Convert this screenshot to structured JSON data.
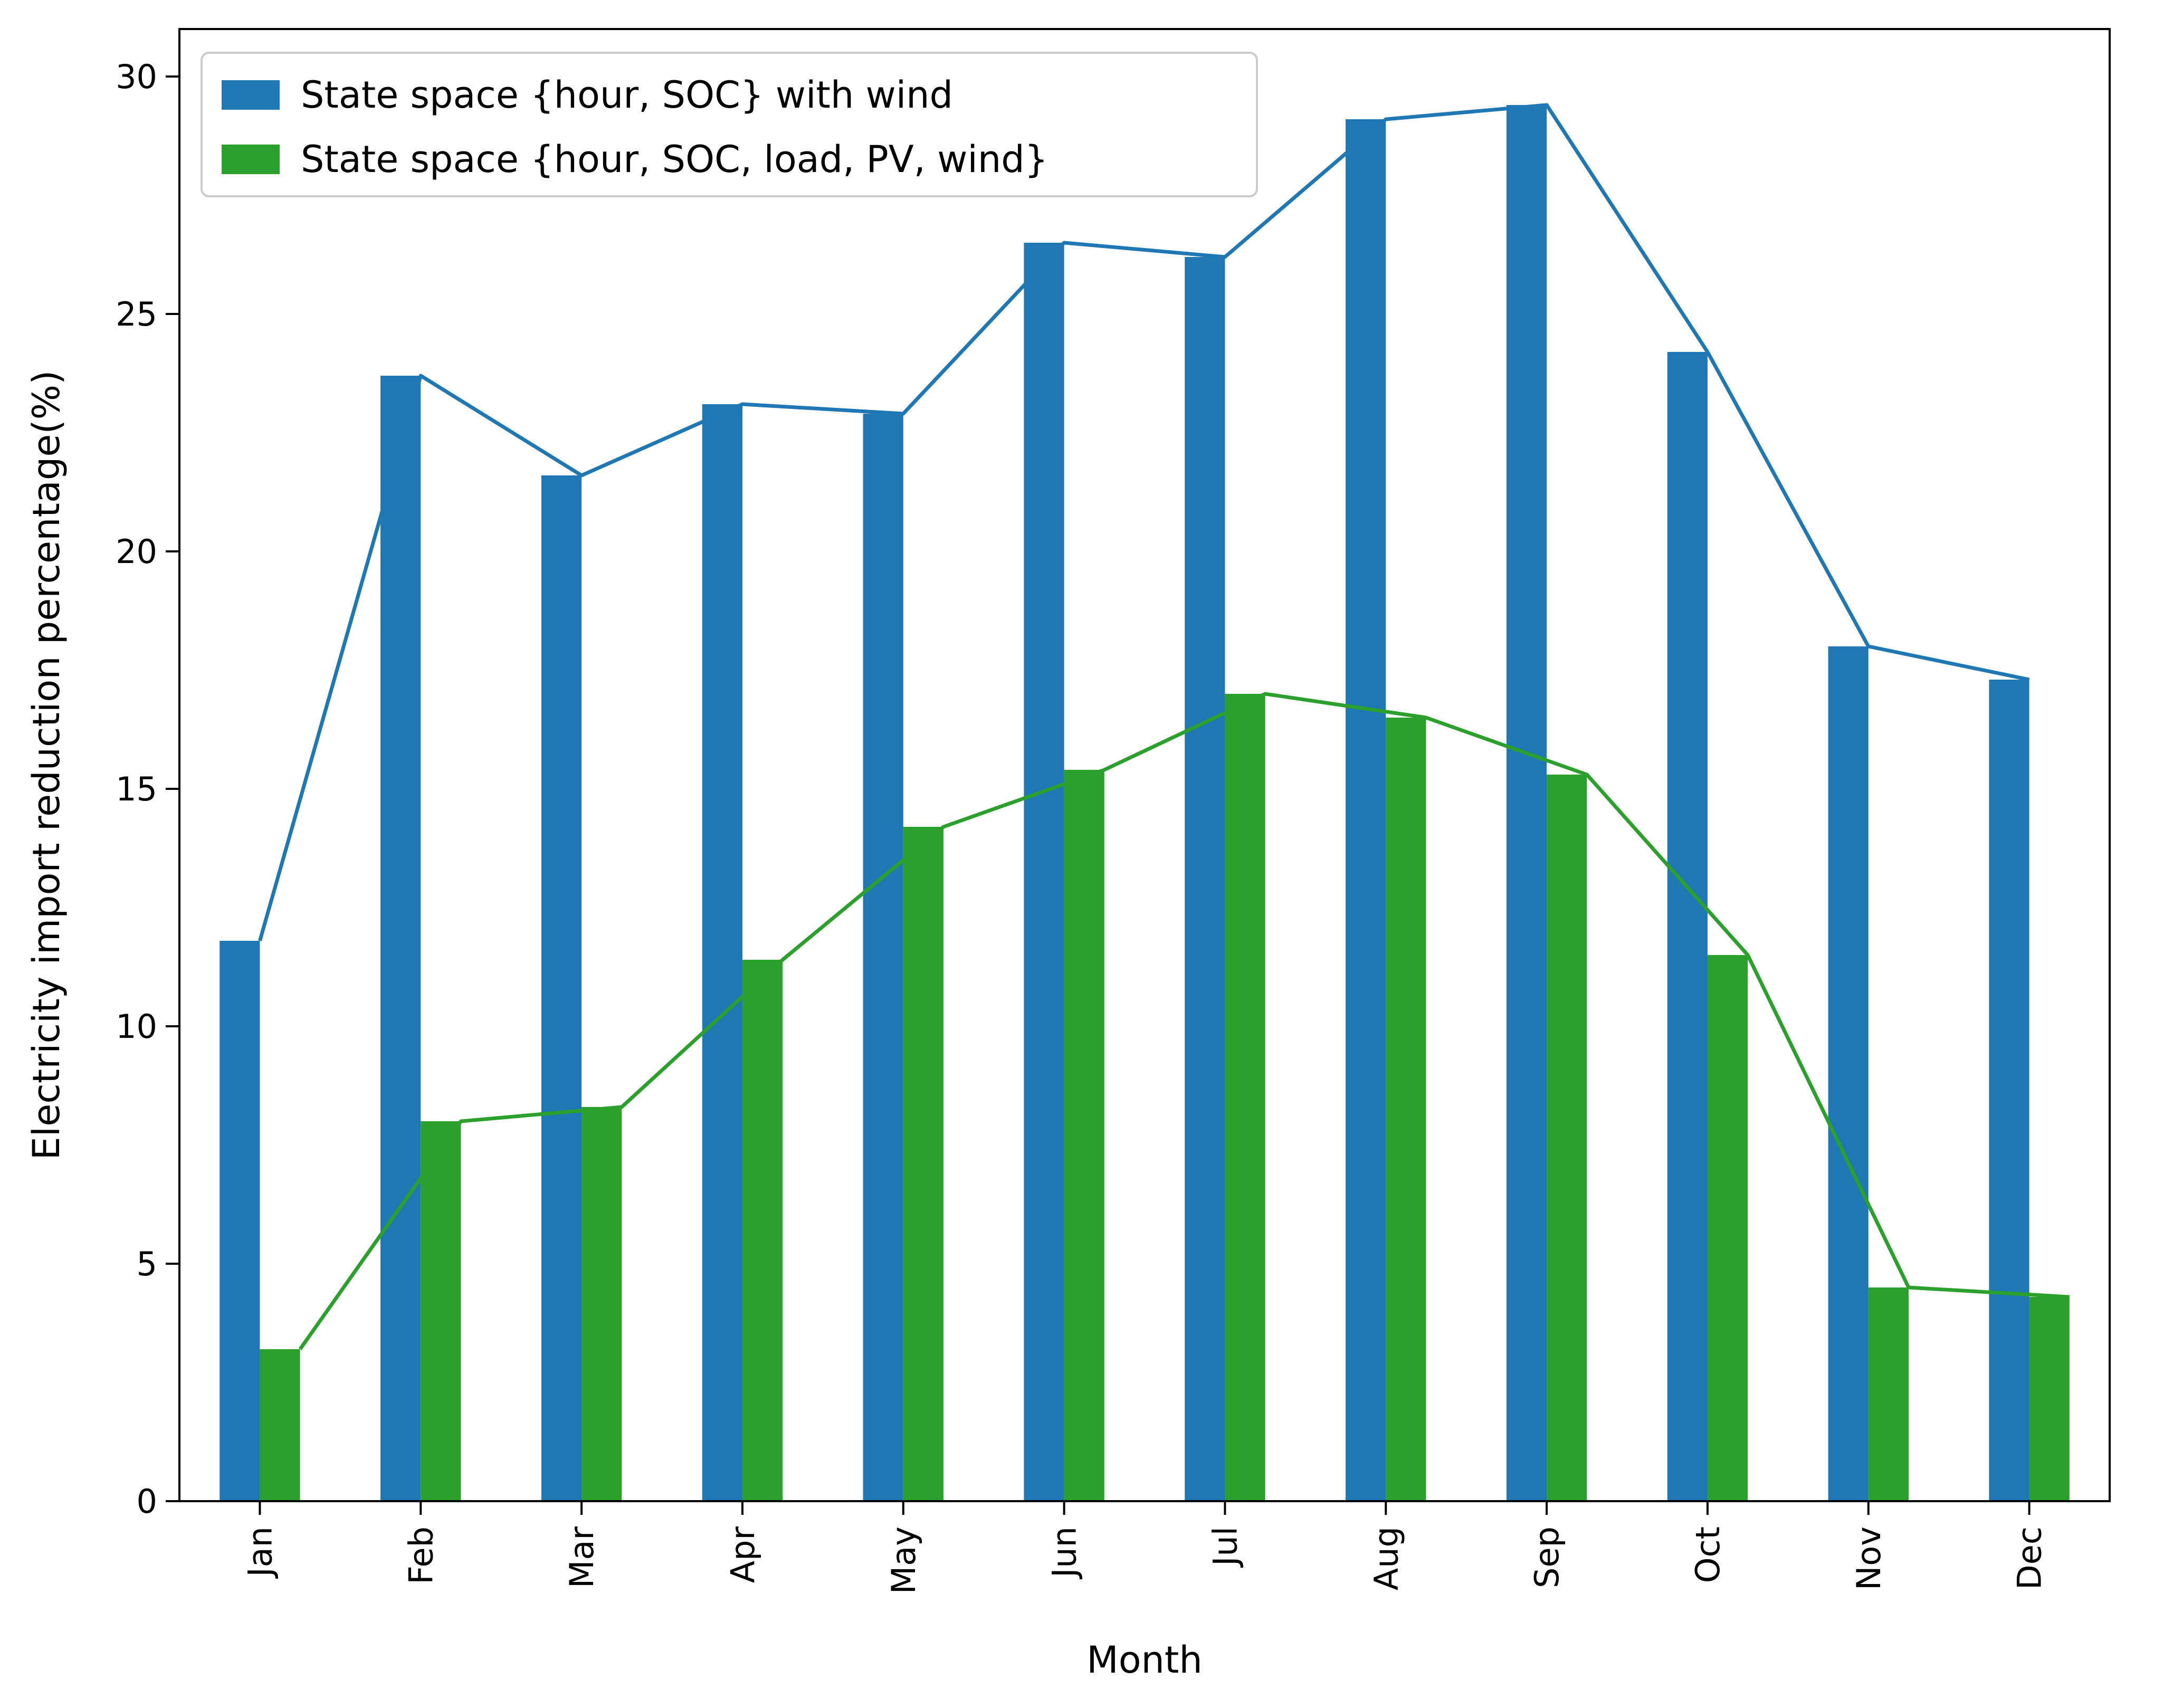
{
  "chart_data": {
    "type": "bar",
    "title": "",
    "xlabel": "Month",
    "ylabel": "Electricity import reduction percentage(%)",
    "categories": [
      "Jan",
      "Feb",
      "Mar",
      "Apr",
      "May",
      "Jun",
      "Jul",
      "Aug",
      "Sep",
      "Oct",
      "Nov",
      "Dec"
    ],
    "ylim": [
      0,
      31
    ],
    "yticks": [
      0,
      5,
      10,
      15,
      20,
      25,
      30
    ],
    "grid": false,
    "legend_position": "top-left",
    "series": [
      {
        "name": "State space {hour, SOC} with wind",
        "color": "#1f77b4",
        "values": [
          11.8,
          23.7,
          21.6,
          23.1,
          22.9,
          26.5,
          26.2,
          29.1,
          29.4,
          24.2,
          18.0,
          17.3
        ],
        "trend_line": true
      },
      {
        "name": "State space {hour, SOC, load, PV, wind}",
        "color": "#2ca02c",
        "values": [
          3.2,
          8.0,
          8.3,
          11.4,
          14.2,
          15.4,
          17.0,
          16.5,
          15.3,
          11.5,
          4.5,
          4.3
        ],
        "trend_line": true
      }
    ]
  }
}
